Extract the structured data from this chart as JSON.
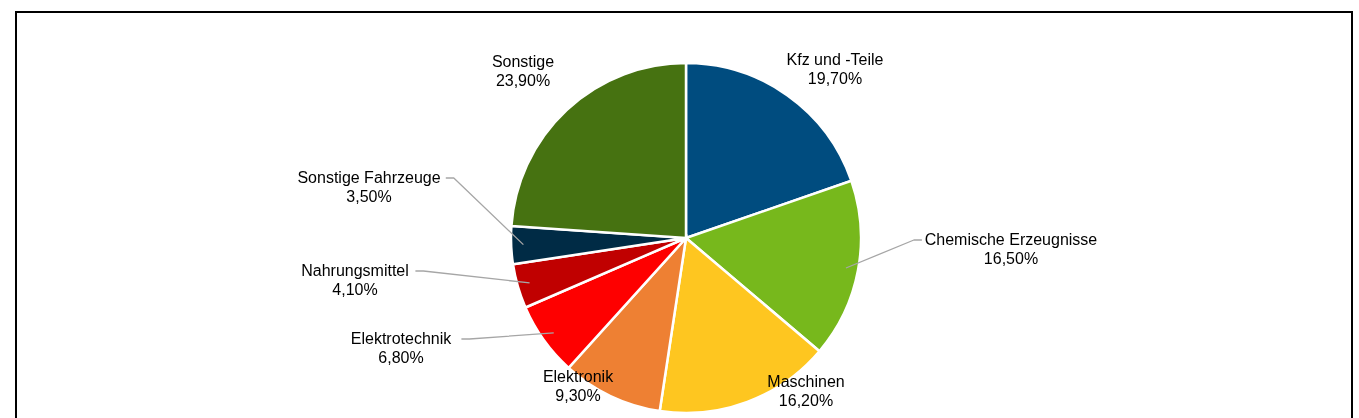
{
  "chart_data": {
    "type": "pie",
    "categories": [
      "Kfz und -Teile",
      "Chemische Erzeugnisse",
      "Maschinen",
      "Elektronik",
      "Elektrotechnik",
      "Nahrungsmittel",
      "Sonstige Fahrzeuge",
      "Sonstige"
    ],
    "values": [
      19.7,
      16.5,
      16.2,
      9.3,
      6.8,
      4.1,
      3.5,
      23.9
    ],
    "colors": [
      "#004c7f",
      "#77b81c",
      "#fec620",
      "#ee8033",
      "#fe0000",
      "#c00000",
      "#002b45",
      "#467211"
    ],
    "value_labels": [
      "19,70%",
      "16,50%",
      "16,20%",
      "9,30%",
      "6,80%",
      "4,10%",
      "3,50%",
      "23,90%"
    ]
  }
}
